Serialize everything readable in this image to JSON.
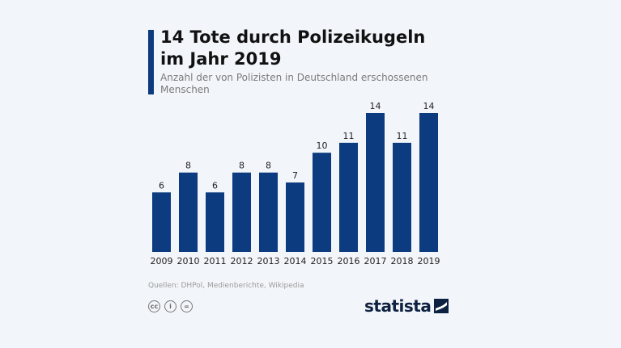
{
  "header": {
    "title": "14 Tote durch Polizeikugeln im Jahr 2019",
    "subtitle": "Anzahl der von Polizisten in Deutschland erschossenen Menschen"
  },
  "footer": {
    "source": "Quellen: DHPol, Medienberichte, Wikipedia",
    "icons": [
      {
        "name": "cc-icon",
        "label": "cc"
      },
      {
        "name": "attribution-icon",
        "label": "i"
      },
      {
        "name": "no-derivatives-icon",
        "label": "="
      }
    ],
    "logo_text": "statista"
  },
  "colors": {
    "background": "#f2f6fa",
    "bar": "#0d3b80",
    "accent": "#0d3b80",
    "title": "#111111",
    "subtitle": "#7a7a7a",
    "source": "#9a9a9a"
  },
  "chart_data": {
    "type": "bar",
    "title": "14 Tote durch Polizeikugeln im Jahr 2019",
    "subtitle": "Anzahl der von Polizisten in Deutschland erschossenen Menschen",
    "xlabel": "",
    "ylabel": "",
    "categories": [
      "2009",
      "2010",
      "2011",
      "2012",
      "2013",
      "2014",
      "2015",
      "2016",
      "2017",
      "2018",
      "2019"
    ],
    "values": [
      6,
      8,
      6,
      8,
      8,
      7,
      10,
      11,
      14,
      11,
      14
    ],
    "ylim": [
      0,
      14
    ],
    "grid": false,
    "legend": "none"
  }
}
